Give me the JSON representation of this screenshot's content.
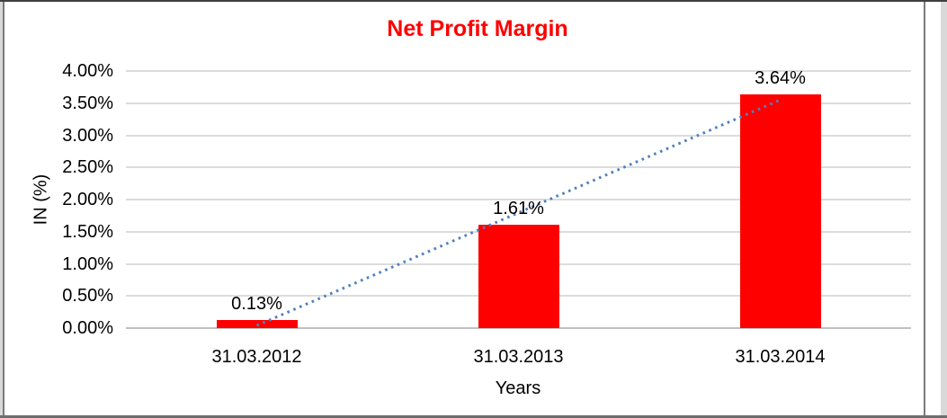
{
  "chart_data": {
    "type": "bar",
    "title": "Net Profit Margin",
    "xlabel": "Years",
    "ylabel": "IN (%)",
    "categories": [
      "31.03.2012",
      "31.03.2013",
      "31.03.2014"
    ],
    "values": [
      0.13,
      1.61,
      3.64
    ],
    "data_labels": [
      "0.13%",
      "1.61%",
      "3.64%"
    ],
    "ylim": [
      0,
      4
    ],
    "ytick_values": [
      4,
      3.5,
      3,
      2.5,
      2,
      1.5,
      1,
      0.5,
      0
    ],
    "ytick_labels": [
      "4.00%",
      "3.50%",
      "3.00%",
      "2.50%",
      "2.00%",
      "1.50%",
      "1.00%",
      "0.50%",
      "0.00%"
    ],
    "grid": true,
    "legend": "none",
    "colors": {
      "bar": "#ff0000",
      "title": "#ff0000",
      "text": "#000000",
      "gridline": "#dcdcdc",
      "axis_line": "#c0c0c0",
      "trendline": "#4f81bd"
    },
    "trendline": {
      "type": "linear",
      "style": "dotted",
      "from_value": 0.04,
      "to_value": 3.55
    }
  }
}
